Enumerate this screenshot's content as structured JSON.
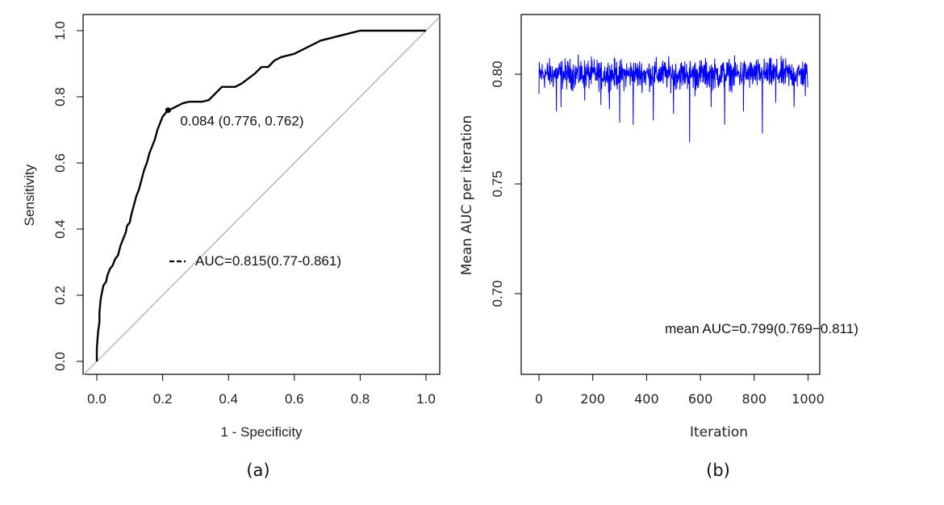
{
  "chart_data": [
    {
      "type": "line",
      "panel_label": "(a)",
      "xlabel": "1 - Specificity",
      "ylabel": "Sensitivity",
      "xlim": [
        0,
        1
      ],
      "ylim": [
        0,
        1
      ],
      "x_ticks": [
        "0.0",
        "0.2",
        "0.4",
        "0.6",
        "0.8",
        "1.0"
      ],
      "y_ticks": [
        "0.0",
        "0.2",
        "0.4",
        "0.6",
        "0.8",
        "1.0"
      ],
      "roc_curve": {
        "points": [
          [
            0.0,
            0.0
          ],
          [
            0.0,
            0.04
          ],
          [
            0.004,
            0.09
          ],
          [
            0.008,
            0.12
          ],
          [
            0.008,
            0.15
          ],
          [
            0.012,
            0.19
          ],
          [
            0.016,
            0.21
          ],
          [
            0.02,
            0.23
          ],
          [
            0.028,
            0.24
          ],
          [
            0.032,
            0.26
          ],
          [
            0.04,
            0.28
          ],
          [
            0.048,
            0.29
          ],
          [
            0.056,
            0.31
          ],
          [
            0.064,
            0.32
          ],
          [
            0.072,
            0.35
          ],
          [
            0.08,
            0.37
          ],
          [
            0.088,
            0.39
          ],
          [
            0.092,
            0.41
          ],
          [
            0.1,
            0.42
          ],
          [
            0.104,
            0.44
          ],
          [
            0.112,
            0.47
          ],
          [
            0.12,
            0.5
          ],
          [
            0.128,
            0.52
          ],
          [
            0.136,
            0.55
          ],
          [
            0.144,
            0.58
          ],
          [
            0.152,
            0.6
          ],
          [
            0.16,
            0.63
          ],
          [
            0.168,
            0.65
          ],
          [
            0.176,
            0.67
          ],
          [
            0.184,
            0.7
          ],
          [
            0.192,
            0.72
          ],
          [
            0.2,
            0.74
          ],
          [
            0.208,
            0.75
          ],
          [
            0.216,
            0.76
          ],
          [
            0.224,
            0.762
          ],
          [
            0.24,
            0.77
          ],
          [
            0.26,
            0.78
          ],
          [
            0.28,
            0.785
          ],
          [
            0.3,
            0.785
          ],
          [
            0.32,
            0.785
          ],
          [
            0.34,
            0.79
          ],
          [
            0.36,
            0.81
          ],
          [
            0.38,
            0.83
          ],
          [
            0.42,
            0.83
          ],
          [
            0.44,
            0.84
          ],
          [
            0.48,
            0.87
          ],
          [
            0.5,
            0.89
          ],
          [
            0.52,
            0.89
          ],
          [
            0.54,
            0.91
          ],
          [
            0.56,
            0.92
          ],
          [
            0.6,
            0.93
          ],
          [
            0.62,
            0.94
          ],
          [
            0.66,
            0.96
          ],
          [
            0.68,
            0.97
          ],
          [
            0.72,
            0.98
          ],
          [
            0.76,
            0.99
          ],
          [
            0.8,
            1.0
          ],
          [
            0.9,
            1.0
          ],
          [
            1.0,
            1.0
          ]
        ]
      },
      "reference_line": [
        [
          0,
          0
        ],
        [
          1,
          1
        ]
      ],
      "optimal_point": {
        "x": 0.224,
        "y": 0.762,
        "label": "0.084 (0.776, 0.762)"
      },
      "legend_text": "AUC=0.815(0.77-0.861)",
      "colors": {
        "curve": "#000000",
        "reference": "#aaaaaa"
      }
    },
    {
      "type": "line",
      "panel_label": "(b)",
      "xlabel": "Iteration",
      "ylabel": "Mean AUC per iteration",
      "xlim": [
        0,
        1000
      ],
      "ylim": [
        0.67,
        0.825
      ],
      "x_ticks": [
        "0",
        "200",
        "400",
        "600",
        "800",
        "1000"
      ],
      "y_ticks": [
        "0.70",
        "0.75",
        "0.80"
      ],
      "series": [
        {
          "mean": 0.8,
          "min": 0.769,
          "max": 0.811,
          "n": 1000,
          "spikes": [
            [
              65,
              0.783
            ],
            [
              82,
              0.785
            ],
            [
              170,
              0.788
            ],
            [
              230,
              0.786
            ],
            [
              262,
              0.784
            ],
            [
              300,
              0.778
            ],
            [
              350,
              0.777
            ],
            [
              425,
              0.779
            ],
            [
              500,
              0.782
            ],
            [
              560,
              0.769
            ],
            [
              580,
              0.79
            ],
            [
              640,
              0.785
            ],
            [
              690,
              0.777
            ],
            [
              760,
              0.783
            ],
            [
              830,
              0.773
            ],
            [
              880,
              0.787
            ],
            [
              948,
              0.785
            ],
            [
              990,
              0.79
            ]
          ]
        }
      ],
      "annotation": "mean AUC=0.799(0.769−0.811)",
      "colors": {
        "series": "#0000ff"
      }
    }
  ]
}
